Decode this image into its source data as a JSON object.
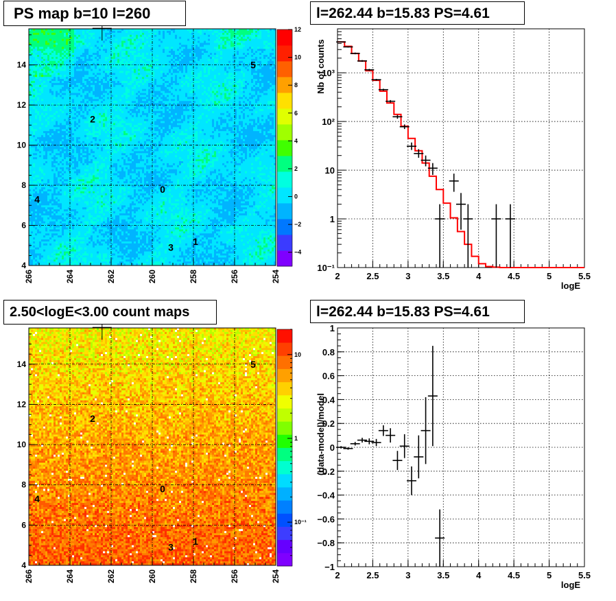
{
  "panels": {
    "ps_map": {
      "title": "PS map b=10 l=260",
      "x_ticks": [
        "266",
        "264",
        "262",
        "260",
        "258",
        "256",
        "254"
      ],
      "y_ticks": [
        "4",
        "6",
        "8",
        "10",
        "12",
        "14"
      ],
      "z_ticks": [
        "12",
        "10",
        "8",
        "6",
        "4",
        "2",
        "0",
        "−2",
        "−4"
      ],
      "markers": [
        {
          "id": "0",
          "l": 259.5,
          "b": 7.8
        },
        {
          "id": "1",
          "l": 257.9,
          "b": 5.2
        },
        {
          "id": "2",
          "l": 262.9,
          "b": 11.3
        },
        {
          "id": "3",
          "l": 259.1,
          "b": 4.9
        },
        {
          "id": "4",
          "l": 265.6,
          "b": 7.3
        },
        {
          "id": "5",
          "l": 255.1,
          "b": 14.0
        }
      ],
      "crosshair": {
        "l": 262.44,
        "b": 15.83
      }
    },
    "count_map": {
      "title": "2.50<logE<3.00 count maps",
      "x_ticks": [
        "266",
        "264",
        "262",
        "260",
        "258",
        "256",
        "254"
      ],
      "y_ticks": [
        "4",
        "6",
        "8",
        "10",
        "12",
        "14"
      ],
      "z_ticks": [
        "10",
        "1",
        "10⁻¹"
      ]
    },
    "spectrum": {
      "title": "l=262.44 b=15.83 PS=4.61"
    },
    "residual": {
      "title": "l=262.44 b=15.83 PS=4.61"
    }
  },
  "chart_data": [
    {
      "type": "heatmap",
      "title": "PS map b=10 l=260",
      "xlim": [
        266,
        254
      ],
      "ylim": [
        4,
        15.8
      ],
      "zlim": [
        -5,
        12
      ],
      "z_scale": "linear",
      "grid": true,
      "palette": [
        "#7f00ff",
        "#3b3bff",
        "#0078ff",
        "#00b4ff",
        "#00e6ff",
        "#00ffe0",
        "#00ff80",
        "#40ff00",
        "#a0ff00",
        "#e0ff00",
        "#ffe000",
        "#ffa000",
        "#ff6000",
        "#ff2000",
        "#ff0000"
      ]
    },
    {
      "type": "heatmap",
      "title": "2.50<logE<3.00 count maps",
      "xlim": [
        266,
        254
      ],
      "ylim": [
        4,
        15.8
      ],
      "zlim": [
        0.03,
        20
      ],
      "z_scale": "log",
      "grid": true
    },
    {
      "type": "line",
      "title": "l=262.44 b=15.83 PS=4.61",
      "xlabel": "logE",
      "ylabel": "Nb of counts",
      "xlim": [
        2,
        5.5
      ],
      "ylim": [
        0.1,
        8000
      ],
      "y_scale": "log",
      "x_ticks": [
        "2",
        "2.5",
        "3",
        "3.5",
        "4",
        "4.5",
        "5",
        "5.5"
      ],
      "y_ticks": [
        {
          "v": 0.1,
          "label": "10⁻¹"
        },
        {
          "v": 1,
          "label": "1"
        },
        {
          "v": 10,
          "label": "10"
        },
        {
          "v": 100,
          "label": "10²"
        },
        {
          "v": 1000,
          "label": "10³"
        }
      ],
      "grid": true,
      "series": [
        {
          "kind": "data",
          "points": [
            {
              "x": 2.05,
              "y": 4300,
              "lo": 4200,
              "hi": 4400
            },
            {
              "x": 2.15,
              "y": 3400,
              "lo": 3300,
              "hi": 3500
            },
            {
              "x": 2.25,
              "y": 2500,
              "lo": 2400,
              "hi": 2600
            },
            {
              "x": 2.35,
              "y": 1750,
              "lo": 1680,
              "hi": 1820
            },
            {
              "x": 2.45,
              "y": 1150,
              "lo": 1100,
              "hi": 1200
            },
            {
              "x": 2.55,
              "y": 720,
              "lo": 690,
              "hi": 750
            },
            {
              "x": 2.65,
              "y": 450,
              "lo": 430,
              "hi": 470
            },
            {
              "x": 2.75,
              "y": 260,
              "lo": 245,
              "hi": 275
            },
            {
              "x": 2.85,
              "y": 125,
              "lo": 114,
              "hi": 136
            },
            {
              "x": 2.95,
              "y": 78,
              "lo": 70,
              "hi": 87
            },
            {
              "x": 3.05,
              "y": 31,
              "lo": 26,
              "hi": 37
            },
            {
              "x": 3.15,
              "y": 22,
              "lo": 18,
              "hi": 27
            },
            {
              "x": 3.25,
              "y": 16,
              "lo": 12,
              "hi": 20
            },
            {
              "x": 3.35,
              "y": 11,
              "lo": 8,
              "hi": 14
            },
            {
              "x": 3.45,
              "y": 1,
              "lo": 0.1,
              "hi": 2
            },
            {
              "x": 3.65,
              "y": 6,
              "lo": 3.6,
              "hi": 8.5
            },
            {
              "x": 3.75,
              "y": 2,
              "lo": 0.6,
              "hi": 3.4
            },
            {
              "x": 3.85,
              "y": 1,
              "lo": 0.1,
              "hi": 2
            },
            {
              "x": 4.25,
              "y": 1,
              "lo": 0.1,
              "hi": 2
            },
            {
              "x": 4.45,
              "y": 1,
              "lo": 0.1,
              "hi": 2
            }
          ]
        },
        {
          "kind": "model",
          "color": "#ff0000",
          "bin_width": 0.1,
          "bins": [
            {
              "x0": 2.0,
              "y": 4300
            },
            {
              "x0": 2.1,
              "y": 3500
            },
            {
              "x0": 2.2,
              "y": 2500
            },
            {
              "x0": 2.3,
              "y": 1750
            },
            {
              "x0": 2.4,
              "y": 1100
            },
            {
              "x0": 2.5,
              "y": 700
            },
            {
              "x0": 2.6,
              "y": 420
            },
            {
              "x0": 2.7,
              "y": 240
            },
            {
              "x0": 2.8,
              "y": 140
            },
            {
              "x0": 2.9,
              "y": 80
            },
            {
              "x0": 3.0,
              "y": 45
            },
            {
              "x0": 3.1,
              "y": 25
            },
            {
              "x0": 3.2,
              "y": 14
            },
            {
              "x0": 3.3,
              "y": 7.5
            },
            {
              "x0": 3.4,
              "y": 4
            },
            {
              "x0": 3.5,
              "y": 2.1
            },
            {
              "x0": 3.6,
              "y": 1.05
            },
            {
              "x0": 3.7,
              "y": 0.55
            },
            {
              "x0": 3.8,
              "y": 0.3
            },
            {
              "x0": 3.9,
              "y": 0.17
            },
            {
              "x0": 4.0,
              "y": 0.12
            },
            {
              "x0": 4.1,
              "y": 0.105
            },
            {
              "x0": 4.2,
              "y": 0.102
            },
            {
              "x0": 4.3,
              "y": 0.1
            },
            {
              "x0": 4.4,
              "y": 0.1
            },
            {
              "x0": 4.5,
              "y": 0.1
            },
            {
              "x0": 4.6,
              "y": 0.1
            },
            {
              "x0": 4.7,
              "y": 0.1
            },
            {
              "x0": 4.8,
              "y": 0.1
            },
            {
              "x0": 4.9,
              "y": 0.1
            },
            {
              "x0": 5.0,
              "y": 0.1
            },
            {
              "x0": 5.1,
              "y": 0.1
            },
            {
              "x0": 5.2,
              "y": 0.1
            },
            {
              "x0": 5.3,
              "y": 0.1
            },
            {
              "x0": 5.4,
              "y": 0.1
            }
          ]
        }
      ]
    },
    {
      "type": "scatter",
      "title": "l=262.44 b=15.83 PS=4.61",
      "xlabel": "logE",
      "ylabel": "(data-model)/model",
      "xlim": [
        2,
        5.5
      ],
      "ylim": [
        -1,
        1
      ],
      "x_ticks": [
        "2",
        "2.5",
        "3",
        "3.5",
        "4",
        "4.5",
        "5",
        "5.5"
      ],
      "y_ticks": [
        "−1",
        "−0.8",
        "−0.6",
        "−0.4",
        "−0.2",
        "0",
        "0.2",
        "0.4",
        "0.6",
        "0.8",
        "1"
      ],
      "grid": true,
      "points": [
        {
          "x": 2.05,
          "y": 0.0,
          "err": 0.01
        },
        {
          "x": 2.15,
          "y": -0.01,
          "err": 0.01
        },
        {
          "x": 2.25,
          "y": 0.03,
          "err": 0.015
        },
        {
          "x": 2.35,
          "y": 0.06,
          "err": 0.02
        },
        {
          "x": 2.45,
          "y": 0.05,
          "err": 0.025
        },
        {
          "x": 2.55,
          "y": 0.04,
          "err": 0.03
        },
        {
          "x": 2.65,
          "y": 0.14,
          "err": 0.045
        },
        {
          "x": 2.75,
          "y": 0.1,
          "err": 0.06
        },
        {
          "x": 2.85,
          "y": -0.11,
          "err": 0.08
        },
        {
          "x": 2.95,
          "y": 0.01,
          "err": 0.1
        },
        {
          "x": 3.05,
          "y": -0.28,
          "err": 0.12
        },
        {
          "x": 3.15,
          "y": -0.08,
          "err": 0.18
        },
        {
          "x": 3.25,
          "y": 0.14,
          "err": 0.28
        },
        {
          "x": 3.35,
          "y": 0.43,
          "err": 0.42
        },
        {
          "x": 3.45,
          "y": -0.76,
          "err": 0.24
        }
      ]
    }
  ]
}
